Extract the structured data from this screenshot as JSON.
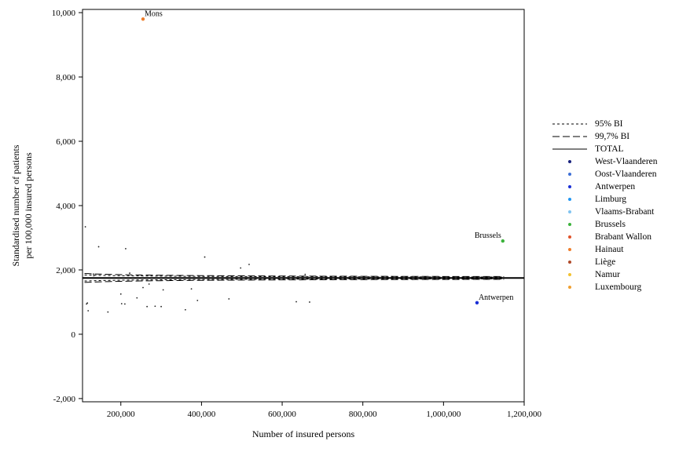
{
  "chart_data": {
    "type": "scatter",
    "title": "",
    "xlabel": "Number of insured persons",
    "ylabel_lines": [
      "Standardised number of patients",
      "per 100,000 insured persons"
    ],
    "xlim": [
      105000,
      1200000
    ],
    "ylim": [
      -2100,
      10100
    ],
    "xticks": [
      200000,
      400000,
      600000,
      800000,
      1000000,
      1200000
    ],
    "xtick_labels": [
      "200,000",
      "400,000",
      "600,000",
      "800,000",
      "1,000,000",
      "1,200,000"
    ],
    "yticks": [
      -2000,
      0,
      2000,
      4000,
      6000,
      8000,
      10000
    ],
    "ytick_labels": [
      "-2,000",
      "0",
      "2,000",
      "4,000",
      "6,000",
      "8,000",
      "10,000"
    ],
    "total": 1750,
    "funnel": {
      "x_range": [
        110000,
        1150000
      ],
      "ci95_coef": 2.35,
      "ci997_coef": 3.5
    },
    "legend": [
      {
        "label": "95% BI",
        "kind": "short-dash"
      },
      {
        "label": "99,7% BI",
        "kind": "long-dash"
      },
      {
        "label": "TOTAL",
        "kind": "solid"
      },
      {
        "label": "West-Vlaanderen",
        "kind": "dot",
        "color": "#1a237e"
      },
      {
        "label": "Oost-Vlaanderen",
        "kind": "dot",
        "color": "#3d6fd6"
      },
      {
        "label": "Antwerpen",
        "kind": "dot",
        "color": "#1a2fd6"
      },
      {
        "label": "Limburg",
        "kind": "dot",
        "color": "#2196f3"
      },
      {
        "label": "Vlaams-Brabant",
        "kind": "dot",
        "color": "#81c4f0"
      },
      {
        "label": "Brussels",
        "kind": "dot",
        "color": "#3cb33c"
      },
      {
        "label": "Brabant Wallon",
        "kind": "dot",
        "color": "#e0522a"
      },
      {
        "label": "Hainaut",
        "kind": "dot",
        "color": "#ef7e2c"
      },
      {
        "label": "Liège",
        "kind": "dot",
        "color": "#b04a2a"
      },
      {
        "label": "Namur",
        "kind": "dot",
        "color": "#f2c230"
      },
      {
        "label": "Luxembourg",
        "kind": "dot",
        "color": "#f0a030"
      }
    ],
    "labeled_points": [
      {
        "label": "Mons",
        "x": 255000,
        "y": 9800,
        "color": "#ef7e2c",
        "label_pos": "right-above"
      },
      {
        "label": "Brussels",
        "x": 1147000,
        "y": 2900,
        "color": "#3cb33c",
        "label_pos": "left-above"
      },
      {
        "label": "Antwerpen",
        "x": 1083000,
        "y": 980,
        "color": "#1a2fd6",
        "label_pos": "right-above"
      }
    ],
    "points": [
      {
        "x": 112000,
        "y": 3340
      },
      {
        "x": 115000,
        "y": 940
      },
      {
        "x": 117000,
        "y": 970
      },
      {
        "x": 119000,
        "y": 730
      },
      {
        "x": 132000,
        "y": 1870
      },
      {
        "x": 133000,
        "y": 1820
      },
      {
        "x": 145000,
        "y": 2720
      },
      {
        "x": 168000,
        "y": 690
      },
      {
        "x": 200000,
        "y": 1250
      },
      {
        "x": 202000,
        "y": 950
      },
      {
        "x": 210000,
        "y": 940
      },
      {
        "x": 212000,
        "y": 2660
      },
      {
        "x": 222000,
        "y": 1900
      },
      {
        "x": 240000,
        "y": 1130
      },
      {
        "x": 255000,
        "y": 1450
      },
      {
        "x": 265000,
        "y": 860
      },
      {
        "x": 270000,
        "y": 1560
      },
      {
        "x": 285000,
        "y": 870
      },
      {
        "x": 300000,
        "y": 860
      },
      {
        "x": 305000,
        "y": 1380
      },
      {
        "x": 360000,
        "y": 760
      },
      {
        "x": 375000,
        "y": 1410
      },
      {
        "x": 390000,
        "y": 1050
      },
      {
        "x": 408000,
        "y": 2400
      },
      {
        "x": 468000,
        "y": 1100
      },
      {
        "x": 497000,
        "y": 2060
      },
      {
        "x": 518000,
        "y": 2170
      },
      {
        "x": 635000,
        "y": 1010
      },
      {
        "x": 657000,
        "y": 1860
      },
      {
        "x": 668000,
        "y": 1000
      }
    ]
  }
}
